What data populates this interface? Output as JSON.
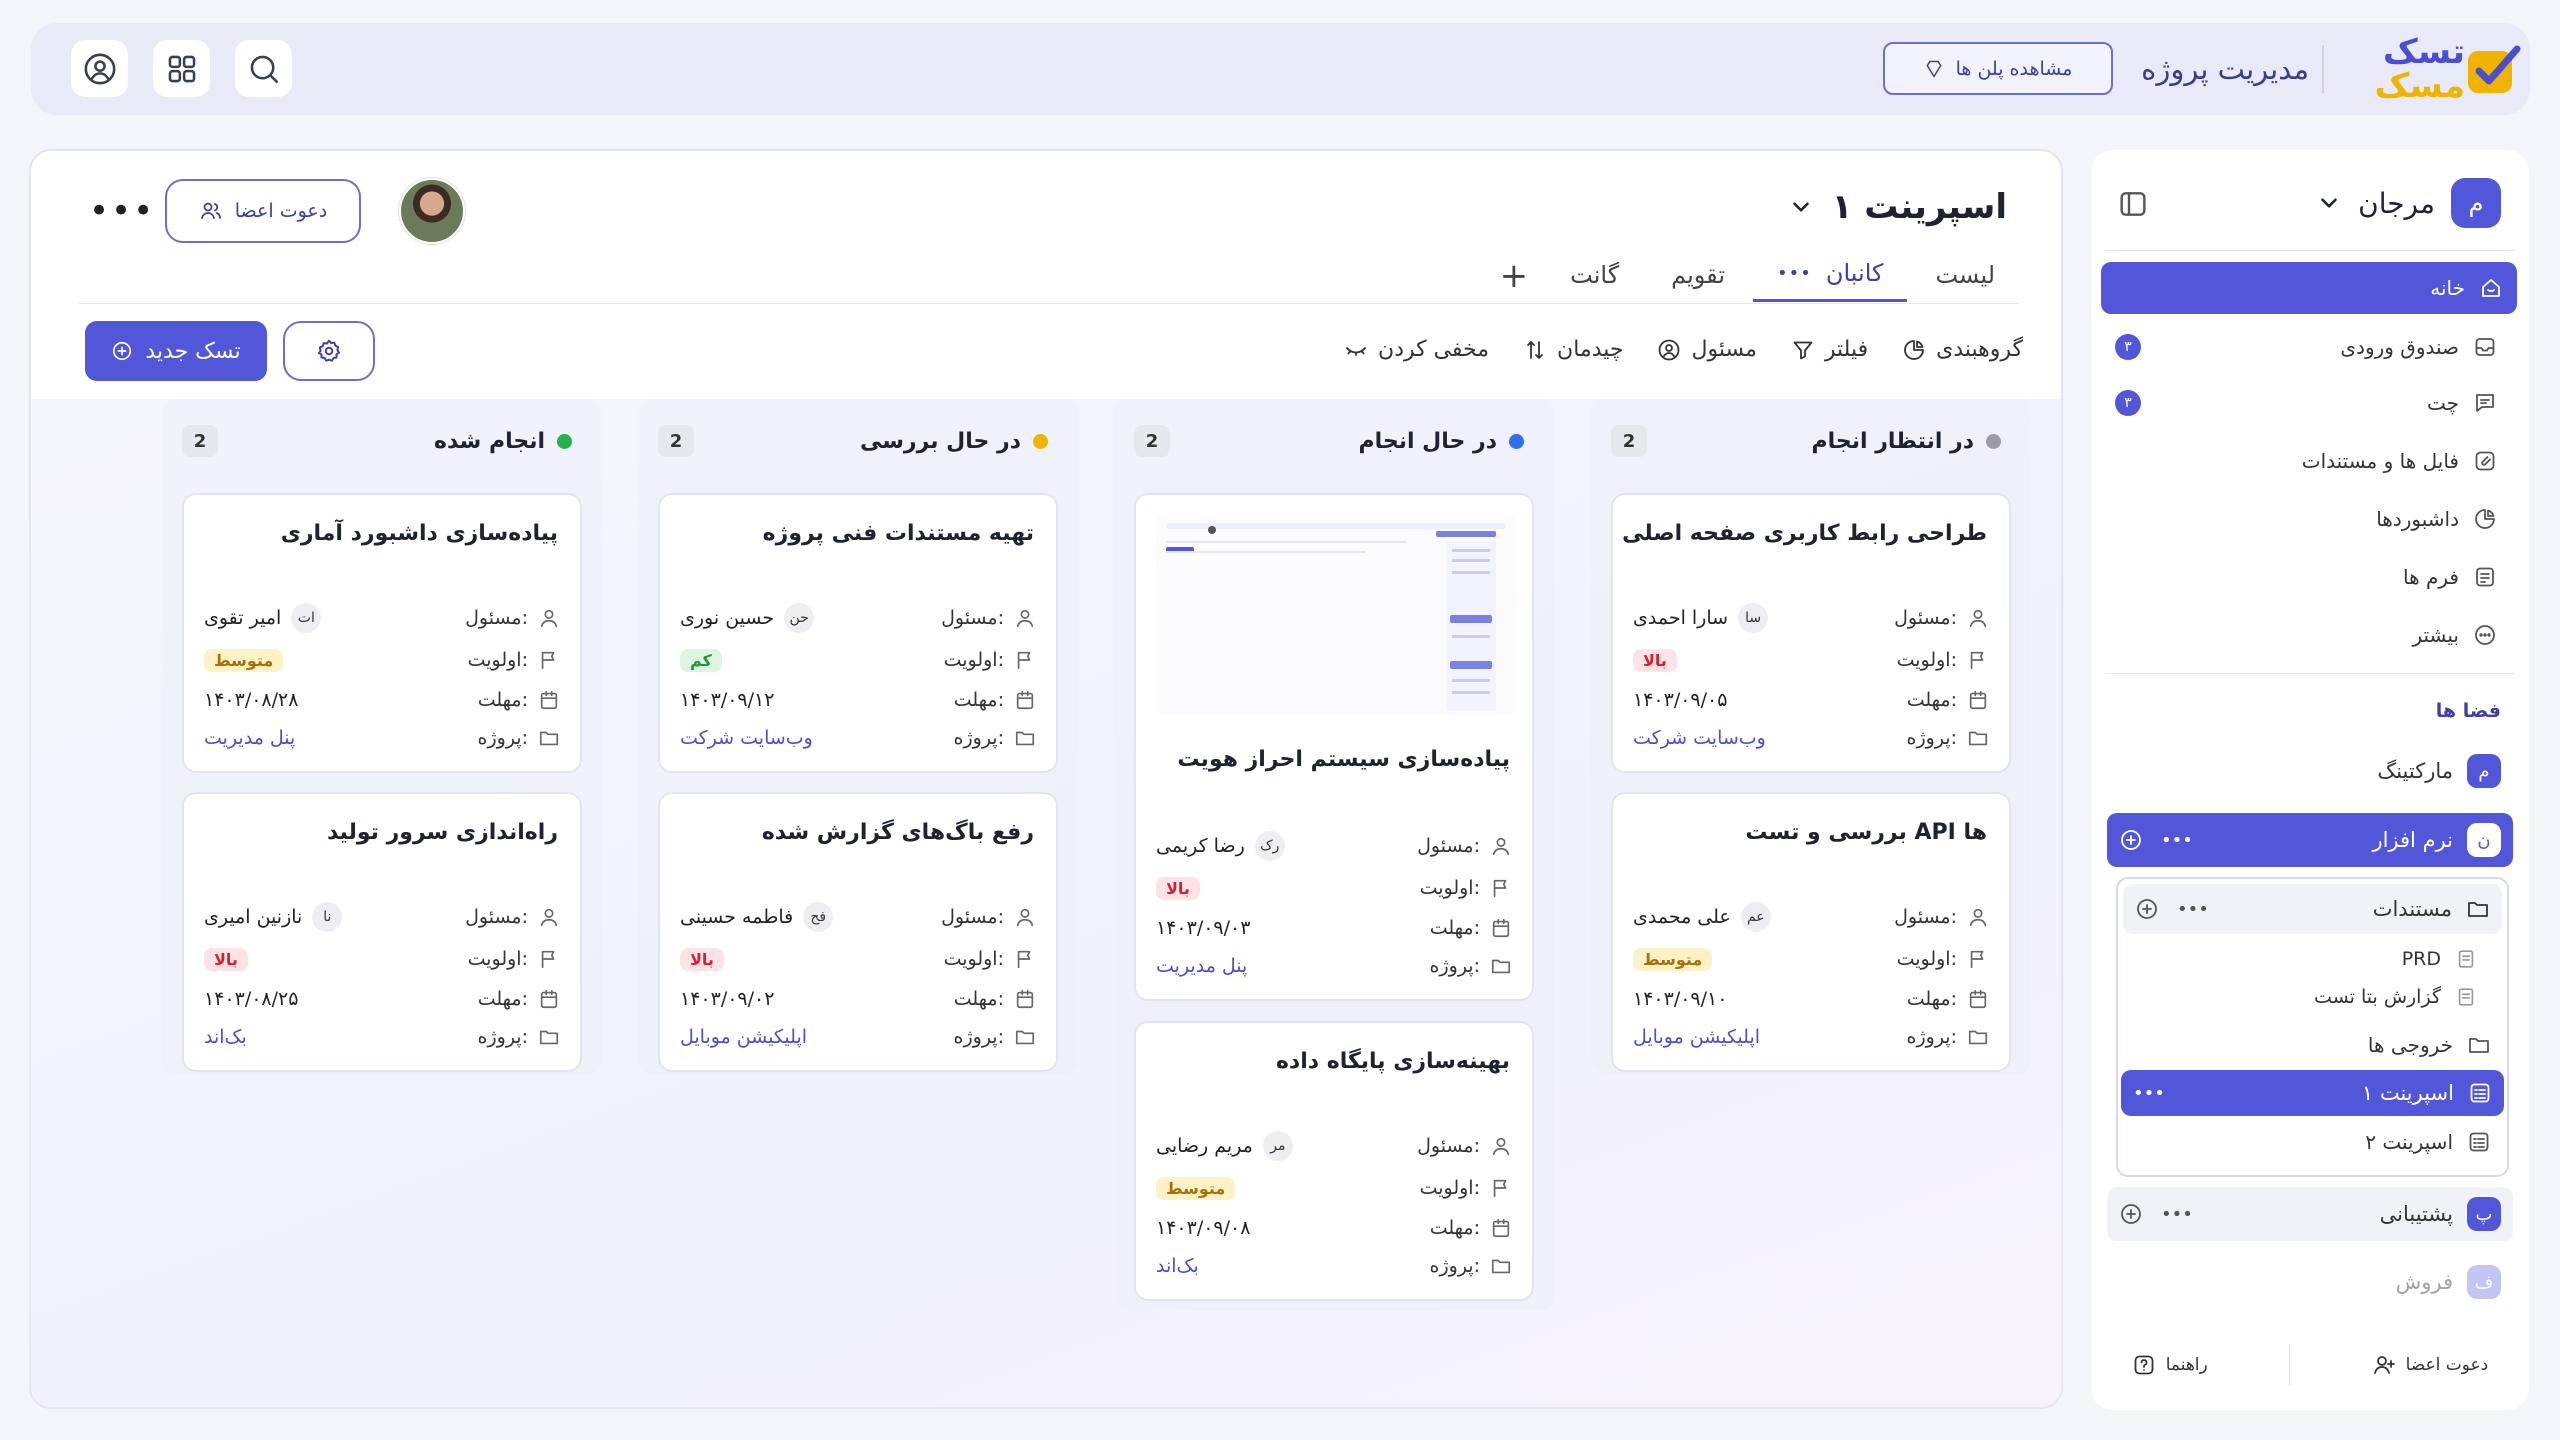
{
  "brand": {
    "logo_line1": "تسک",
    "logo_line2": "مسک",
    "title": "مدیریت پروژه",
    "plans_button": "مشاهده پلن ها"
  },
  "colors": {
    "accent": "#5257d9",
    "high": "#d5202f",
    "medium": "#a87108",
    "low": "#1c9a3a"
  },
  "main": {
    "sprint_title": "اسپرینت ۱",
    "invite_button": "دعوت اعضا",
    "more": "•••",
    "tabs": [
      {
        "label": "لیست"
      },
      {
        "label": "کانبان"
      },
      {
        "label": "تقویم"
      },
      {
        "label": "گانت"
      }
    ],
    "toolbar": {
      "group": "گروهبندی",
      "filter": "فیلتر",
      "owner": "مسئول",
      "sort": "چیدمان",
      "hide": "مخفی کردن"
    },
    "new_task": "تسک جدید"
  },
  "labels": {
    "owner": "مسئول:",
    "priority": "اولویت:",
    "deadline": "مهلت:",
    "project": "پروژه:"
  },
  "columns": [
    {
      "title": "در انتظار انجام",
      "count": "2",
      "dot": "#9a9ca6",
      "cards": [
        {
          "title": "طراحی رابط کاربری صفحه اصلی",
          "initials": "سا",
          "owner": "سارا احمدی",
          "priority": "بالا",
          "level": "high",
          "deadline": "۱۴۰۳/۰۹/۰۵",
          "project": "وب‌سایت شرکت"
        },
        {
          "title": "بررسی و تست API ها",
          "initials": "عم",
          "owner": "علی محمدی",
          "priority": "متوسط",
          "level": "mid",
          "deadline": "۱۴۰۳/۰۹/۱۰",
          "project": "اپلیکیشن موبایل"
        }
      ]
    },
    {
      "title": "در حال انجام",
      "count": "2",
      "dot": "#2f6fe8",
      "cards": [
        {
          "title": "پیاده‌سازی سیستم احراز هویت",
          "initials": "رک",
          "owner": "رضا کریمی",
          "priority": "بالا",
          "level": "high",
          "deadline": "۱۴۰۳/۰۹/۰۳",
          "project": "پنل مدیریت"
        },
        {
          "title": "بهینه‌سازی پایگاه داده",
          "initials": "مر",
          "owner": "مریم رضایی",
          "priority": "متوسط",
          "level": "mid",
          "deadline": "۱۴۰۳/۰۹/۰۸",
          "project": "بک‌اند"
        }
      ]
    },
    {
      "title": "در حال بررسی",
      "count": "2",
      "dot": "#f0b400",
      "cards": [
        {
          "title": "تهیه مستندات فنی پروژه",
          "initials": "حن",
          "owner": "حسین نوری",
          "priority": "کم",
          "level": "low",
          "deadline": "۱۴۰۳/۰۹/۱۲",
          "project": "وب‌سایت شرکت"
        },
        {
          "title": "رفع باگ‌های گزارش شده",
          "initials": "فح",
          "owner": "فاطمه حسینی",
          "priority": "بالا",
          "level": "high",
          "deadline": "۱۴۰۳/۰۹/۰۲",
          "project": "اپلیکیشن موبایل"
        }
      ]
    },
    {
      "title": "انجام شده",
      "count": "2",
      "dot": "#22b34a",
      "cards": [
        {
          "title": "پیاده‌سازی داشبورد آماری",
          "initials": "ات",
          "owner": "امیر تقوی",
          "priority": "متوسط",
          "level": "mid",
          "deadline": "۱۴۰۳/۰۸/۲۸",
          "project": "پنل مدیریت"
        },
        {
          "title": "راه‌اندازی سرور تولید",
          "initials": "نا",
          "owner": "نازنین امیری",
          "priority": "بالا",
          "level": "high",
          "deadline": "۱۴۰۳/۰۸/۲۵",
          "project": "بک‌اند"
        }
      ]
    }
  ],
  "sidebar": {
    "workspace": {
      "initial": "م",
      "name": "مرجان"
    },
    "home": "خانه",
    "items": [
      {
        "label": "صندوق ورودی",
        "badge": "۳"
      },
      {
        "label": "چت",
        "badge": "۳"
      },
      {
        "label": "فایل ها و مستندات"
      },
      {
        "label": "داشبوردها"
      },
      {
        "label": "فرم ها"
      },
      {
        "label": "بیشتر"
      }
    ],
    "spaces_label": "فضا ها",
    "spaces": [
      {
        "initial": "م",
        "name": "مارکتینگ"
      },
      {
        "initial": "ن",
        "name": "نرم افزار"
      },
      {
        "initial": "پ",
        "name": "پشتیبانی"
      },
      {
        "initial": "ف",
        "name": "فروش"
      }
    ],
    "tree": {
      "docs": "مستندات",
      "prd": "PRD",
      "beta": "گزارش بتا تست",
      "outputs": "خروجی ها",
      "sprint1": "اسپرینت ۱",
      "sprint2": "اسپرینت ۲"
    },
    "footer": {
      "invite": "دعوت اعضا",
      "guide": "راهنما"
    }
  }
}
